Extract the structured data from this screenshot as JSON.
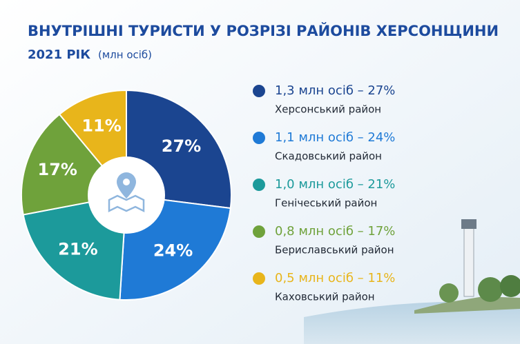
{
  "chart_data": {
    "type": "pie",
    "title": "ВНУТРІШНІ ТУРИСТИ У РОЗРІЗІ РАЙОНІВ ХЕРСОНЩИНИ",
    "subtitle": "2021 РІК",
    "unit": "(млн осіб)",
    "categories": [
      "Херсонський район",
      "Скадовський район",
      "Генічеський район",
      "Бериславський район",
      "Каховський район"
    ],
    "values": [
      27,
      24,
      21,
      17,
      11
    ],
    "value_labels": [
      "27%",
      "24%",
      "21%",
      "17%",
      "11%"
    ],
    "legend_labels": [
      "1,3 млн осіб – 27%",
      "1,1 млн осіб – 24%",
      "1,0 млн осіб – 21%",
      "0,8 млн осіб – 17%",
      "0,5 млн осіб – 11%"
    ],
    "colors": [
      "#1b4590",
      "#1f7ad6",
      "#1c9a9b",
      "#6fa23b",
      "#e8b51b"
    ]
  }
}
